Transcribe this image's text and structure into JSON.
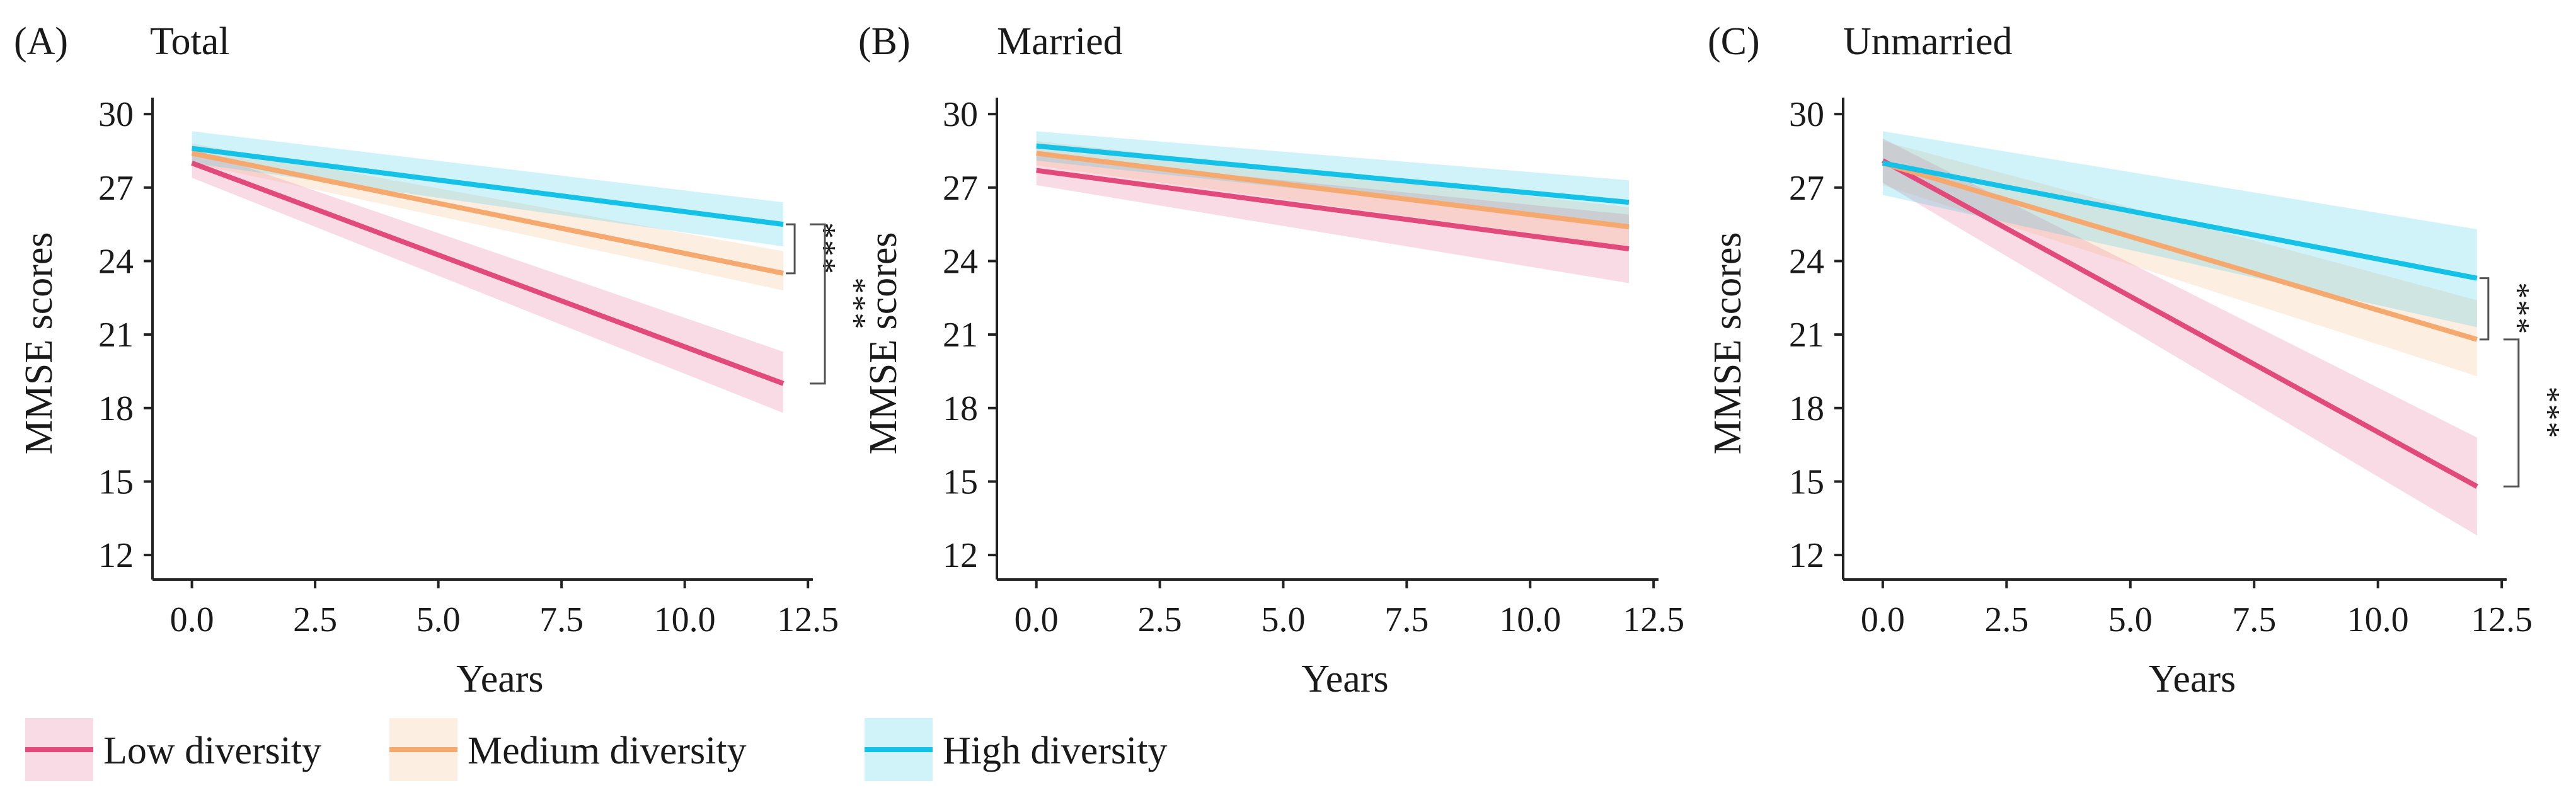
{
  "colors": {
    "low": "#e24a7b",
    "medium": "#f5a96e",
    "high": "#14c2e8",
    "axis": "#222222",
    "bracket": "#555555"
  },
  "legend": [
    {
      "key": "low",
      "label": "Low diversity"
    },
    {
      "key": "medium",
      "label": "Medium diversity"
    },
    {
      "key": "high",
      "label": "High diversity"
    }
  ],
  "chart_data": [
    {
      "type": "line",
      "panel_letter": "(A)",
      "title": "Total",
      "xlabel": "Years",
      "ylabel": "MMSE scores",
      "xlim": [
        -0.8,
        12.6
      ],
      "ylim": [
        11,
        30.8
      ],
      "x_ticks": [
        0.0,
        2.5,
        5.0,
        7.5,
        10.0,
        12.5
      ],
      "x_tick_labels": [
        "0.0",
        "2.5",
        "5.0",
        "7.5",
        "10.0",
        "12.5"
      ],
      "y_ticks": [
        12,
        15,
        18,
        21,
        24,
        27,
        30
      ],
      "y_tick_labels": [
        "12",
        "15",
        "18",
        "21",
        "24",
        "27",
        "30"
      ],
      "series": [
        {
          "name": "Low diversity",
          "key": "low",
          "x": [
            0,
            12
          ],
          "y": [
            28.0,
            19.0
          ],
          "ci_low": [
            27.4,
            17.8
          ],
          "ci_high": [
            28.6,
            20.3
          ]
        },
        {
          "name": "Medium diversity",
          "key": "medium",
          "x": [
            0,
            12
          ],
          "y": [
            28.4,
            23.5
          ],
          "ci_low": [
            28.0,
            22.8
          ],
          "ci_high": [
            28.8,
            24.4
          ]
        },
        {
          "name": "High diversity",
          "key": "high",
          "x": [
            0,
            12
          ],
          "y": [
            28.6,
            25.5
          ],
          "ci_low": [
            28.0,
            24.6
          ],
          "ci_high": [
            29.3,
            26.4
          ]
        }
      ],
      "annotations": [
        {
          "label": "***",
          "from": 25.5,
          "to": 23.5,
          "level": 0
        },
        {
          "label": "***",
          "from": 25.5,
          "to": 19.0,
          "level": 1
        }
      ]
    },
    {
      "type": "line",
      "panel_letter": "(B)",
      "title": "Married",
      "xlabel": "Years",
      "ylabel": "MMSE scores",
      "xlim": [
        -0.8,
        12.6
      ],
      "ylim": [
        11,
        30.8
      ],
      "x_ticks": [
        0.0,
        2.5,
        5.0,
        7.5,
        10.0,
        12.5
      ],
      "x_tick_labels": [
        "0.0",
        "2.5",
        "5.0",
        "7.5",
        "10.0",
        "12.5"
      ],
      "y_ticks": [
        12,
        15,
        18,
        21,
        24,
        27,
        30
      ],
      "y_tick_labels": [
        "12",
        "15",
        "18",
        "21",
        "24",
        "27",
        "30"
      ],
      "series": [
        {
          "name": "Low diversity",
          "key": "low",
          "x": [
            0,
            12
          ],
          "y": [
            27.7,
            24.5
          ],
          "ci_low": [
            27.1,
            23.1
          ],
          "ci_high": [
            28.3,
            25.9
          ]
        },
        {
          "name": "Medium diversity",
          "key": "medium",
          "x": [
            0,
            12
          ],
          "y": [
            28.4,
            25.4
          ],
          "ci_low": [
            27.9,
            24.6
          ],
          "ci_high": [
            28.9,
            26.2
          ]
        },
        {
          "name": "High diversity",
          "key": "high",
          "x": [
            0,
            12
          ],
          "y": [
            28.7,
            26.4
          ],
          "ci_low": [
            28.1,
            25.5
          ],
          "ci_high": [
            29.3,
            27.3
          ]
        }
      ],
      "annotations": []
    },
    {
      "type": "line",
      "panel_letter": "(C)",
      "title": "Unmarried",
      "xlabel": "Years",
      "ylabel": "MMSE scores",
      "xlim": [
        -0.8,
        12.6
      ],
      "ylim": [
        11,
        30.8
      ],
      "x_ticks": [
        0.0,
        2.5,
        5.0,
        7.5,
        10.0,
        12.5
      ],
      "x_tick_labels": [
        "0.0",
        "2.5",
        "5.0",
        "7.5",
        "10.0",
        "12.5"
      ],
      "y_ticks": [
        12,
        15,
        18,
        21,
        24,
        27,
        30
      ],
      "y_tick_labels": [
        "12",
        "15",
        "18",
        "21",
        "24",
        "27",
        "30"
      ],
      "series": [
        {
          "name": "Low diversity",
          "key": "low",
          "x": [
            0,
            12
          ],
          "y": [
            28.1,
            14.8
          ],
          "ci_low": [
            27.2,
            12.8
          ],
          "ci_high": [
            29.0,
            16.8
          ]
        },
        {
          "name": "Medium diversity",
          "key": "medium",
          "x": [
            0,
            12
          ],
          "y": [
            28.0,
            20.8
          ],
          "ci_low": [
            27.1,
            19.3
          ],
          "ci_high": [
            28.9,
            22.4
          ]
        },
        {
          "name": "High diversity",
          "key": "high",
          "x": [
            0,
            12
          ],
          "y": [
            28.0,
            23.3
          ],
          "ci_low": [
            26.7,
            21.3
          ],
          "ci_high": [
            29.3,
            25.3
          ]
        }
      ],
      "annotations": [
        {
          "label": "***",
          "from": 23.3,
          "to": 20.8,
          "level": 0
        },
        {
          "label": "***",
          "from": 20.8,
          "to": 14.8,
          "level": 1
        }
      ]
    }
  ]
}
